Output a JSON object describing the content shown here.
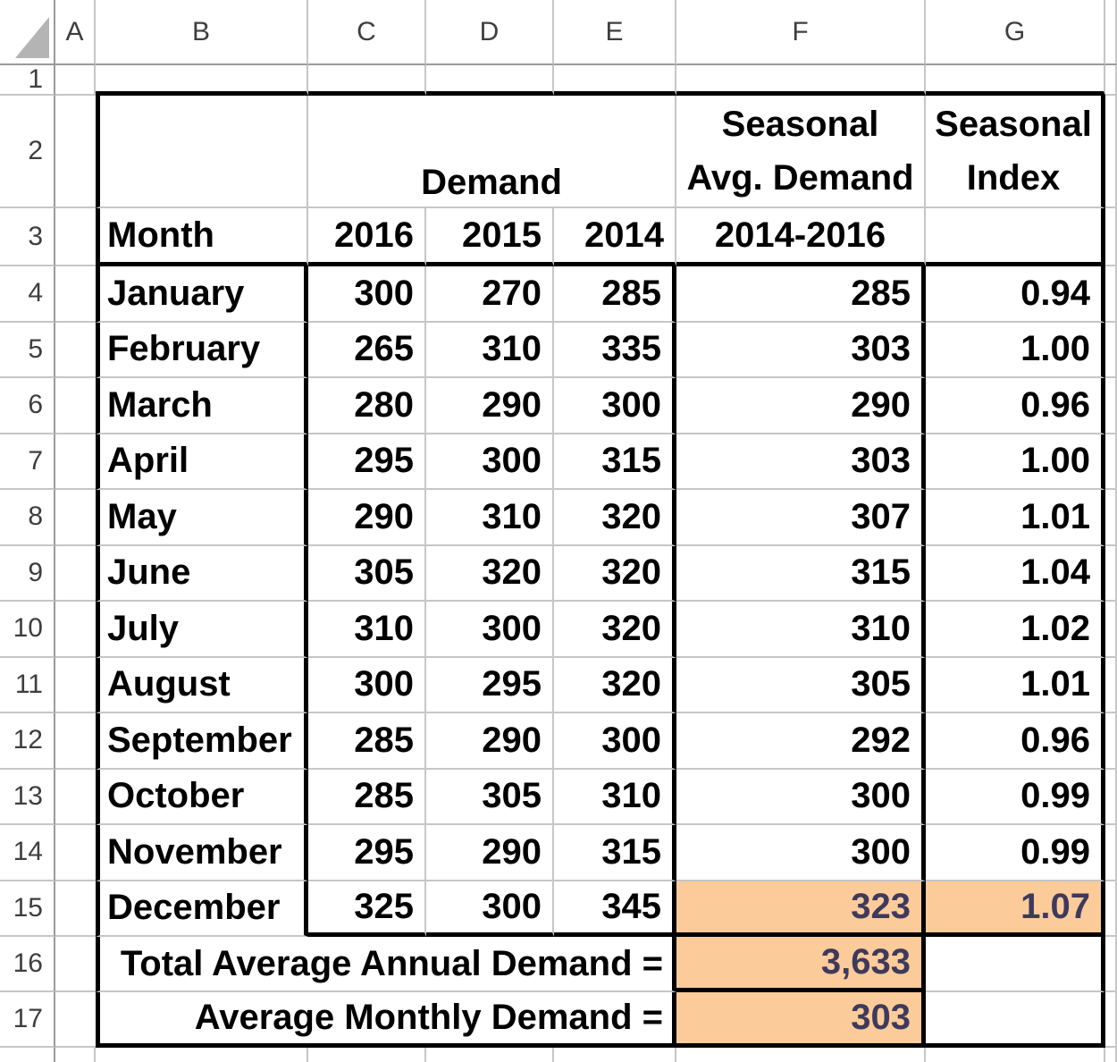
{
  "sheet": {
    "column_headers": [
      "A",
      "B",
      "C",
      "D",
      "E",
      "F",
      "G"
    ],
    "row_headers": [
      "1",
      "2",
      "3",
      "4",
      "5",
      "6",
      "7",
      "8",
      "9",
      "10",
      "11",
      "12",
      "13",
      "14",
      "15",
      "16",
      "17"
    ],
    "colors": {
      "highlight_fill": "#FBCB9A",
      "highlight_text": "#3E3A5C",
      "grid_line": "#C6C6C6",
      "header_line": "#9A9A9A",
      "header_text": "#3E3E3E",
      "heavy_border": "#000000",
      "select_all_triangle": "#B4B4B4"
    }
  },
  "table": {
    "demand_header": "Demand",
    "seasonal_avg_header": [
      "Seasonal",
      "Avg. Demand"
    ],
    "seasonal_index_header": [
      "Seasonal",
      "Index"
    ],
    "month_header": "Month",
    "year_headers": [
      "2016",
      "2015",
      "2014"
    ],
    "avg_period_header": "2014-2016",
    "rows": [
      {
        "month": "January",
        "d2016": "300",
        "d2015": "270",
        "d2014": "285",
        "avg": "285",
        "index": "0.94",
        "highlight": false
      },
      {
        "month": "February",
        "d2016": "265",
        "d2015": "310",
        "d2014": "335",
        "avg": "303",
        "index": "1.00",
        "highlight": false
      },
      {
        "month": "March",
        "d2016": "280",
        "d2015": "290",
        "d2014": "300",
        "avg": "290",
        "index": "0.96",
        "highlight": false
      },
      {
        "month": "April",
        "d2016": "295",
        "d2015": "300",
        "d2014": "315",
        "avg": "303",
        "index": "1.00",
        "highlight": false
      },
      {
        "month": "May",
        "d2016": "290",
        "d2015": "310",
        "d2014": "320",
        "avg": "307",
        "index": "1.01",
        "highlight": false
      },
      {
        "month": "June",
        "d2016": "305",
        "d2015": "320",
        "d2014": "320",
        "avg": "315",
        "index": "1.04",
        "highlight": false
      },
      {
        "month": "July",
        "d2016": "310",
        "d2015": "300",
        "d2014": "320",
        "avg": "310",
        "index": "1.02",
        "highlight": false
      },
      {
        "month": "August",
        "d2016": "300",
        "d2015": "295",
        "d2014": "320",
        "avg": "305",
        "index": "1.01",
        "highlight": false
      },
      {
        "month": "September",
        "d2016": "285",
        "d2015": "290",
        "d2014": "300",
        "avg": "292",
        "index": "0.96",
        "highlight": false
      },
      {
        "month": "October",
        "d2016": "285",
        "d2015": "305",
        "d2014": "310",
        "avg": "300",
        "index": "0.99",
        "highlight": false
      },
      {
        "month": "November",
        "d2016": "295",
        "d2015": "290",
        "d2014": "315",
        "avg": "300",
        "index": "0.99",
        "highlight": false
      },
      {
        "month": "December",
        "d2016": "325",
        "d2015": "300",
        "d2014": "345",
        "avg": "323",
        "index": "1.07",
        "highlight": true
      }
    ],
    "totals": [
      {
        "label": "Total Average Annual Demand =",
        "value": "3,633"
      },
      {
        "label": "Average Monthly Demand =",
        "value": "303"
      }
    ]
  }
}
